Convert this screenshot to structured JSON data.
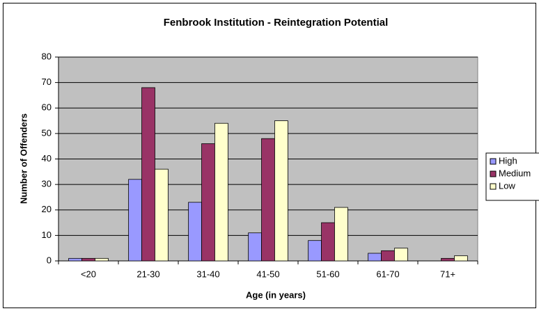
{
  "chart_data": {
    "type": "bar",
    "title": "Fenbrook Institution - Reintegration Potential",
    "x_label": "Age (in years)",
    "y_label": "Number of Offenders",
    "categories": [
      "<20",
      "21-30",
      "31-40",
      "41-50",
      "51-60",
      "61-70",
      "71+"
    ],
    "series": [
      {
        "name": "High",
        "color": "#9999ff",
        "values": [
          1,
          32,
          23,
          11,
          8,
          3,
          0
        ]
      },
      {
        "name": "Medium",
        "color": "#993366",
        "values": [
          1,
          68,
          46,
          48,
          15,
          4,
          1
        ]
      },
      {
        "name": "Low",
        "color": "#ffffcc",
        "values": [
          1,
          36,
          54,
          55,
          21,
          5,
          2
        ]
      }
    ],
    "ylim": [
      0,
      80
    ],
    "yticks": [
      0,
      10,
      20,
      30,
      40,
      50,
      60,
      70,
      80
    ],
    "grid": true,
    "legend": "right"
  }
}
